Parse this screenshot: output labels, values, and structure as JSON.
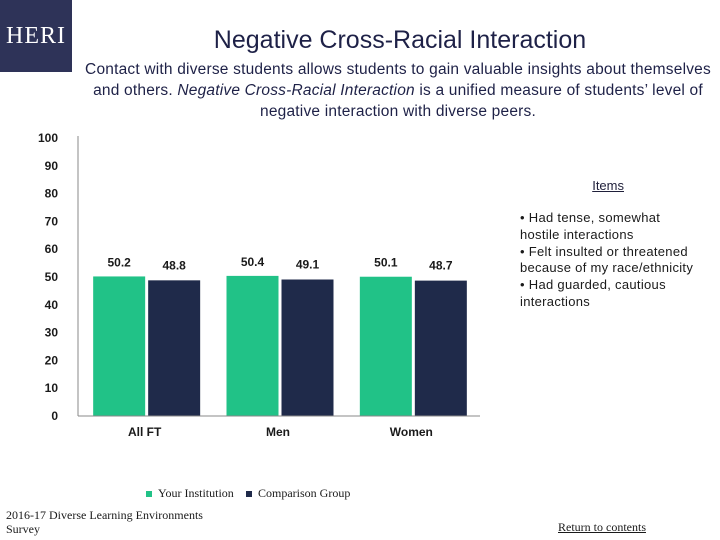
{
  "logo": {
    "text": "HERI"
  },
  "header": {
    "title": "Negative Cross-Racial Interaction",
    "subtitle_plain_1": "Contact with diverse students allows students to gain valuable insights about themselves and others. ",
    "subtitle_italic": "Negative Cross-Racial Interaction",
    "subtitle_plain_2": " is a unified measure of students’ level of negative interaction with diverse peers."
  },
  "legend_items": {
    "heading": "Items",
    "items": [
      "• Had tense, somewhat hostile interactions",
      "• Felt insulted or threatened because of my race/ethnicity",
      "• Had guarded, cautious interactions"
    ]
  },
  "colors": {
    "your_institution": "#21c287",
    "comparison_group": "#1f2a4a"
  },
  "chart_data": {
    "type": "bar",
    "categories": [
      "All FT",
      "Men",
      "Women"
    ],
    "series": [
      {
        "name": "Your Institution",
        "values": [
          50.2,
          50.4,
          50.1
        ],
        "labels": [
          "50.2",
          "50.4",
          "50.1"
        ]
      },
      {
        "name": "Comparison Group",
        "values": [
          48.8,
          49.1,
          48.7
        ],
        "labels": [
          "48.8",
          "49.1",
          "48.7"
        ]
      }
    ],
    "ylim": [
      0,
      100
    ],
    "yticks": [
      "0",
      "10",
      "20",
      "30",
      "40",
      "50",
      "60",
      "70",
      "80",
      "90",
      "100"
    ],
    "legend_position": "bottom",
    "grid": false
  },
  "footer": {
    "source": "2016-17 Diverse Learning Environments Survey",
    "return_link": "Return to contents"
  }
}
